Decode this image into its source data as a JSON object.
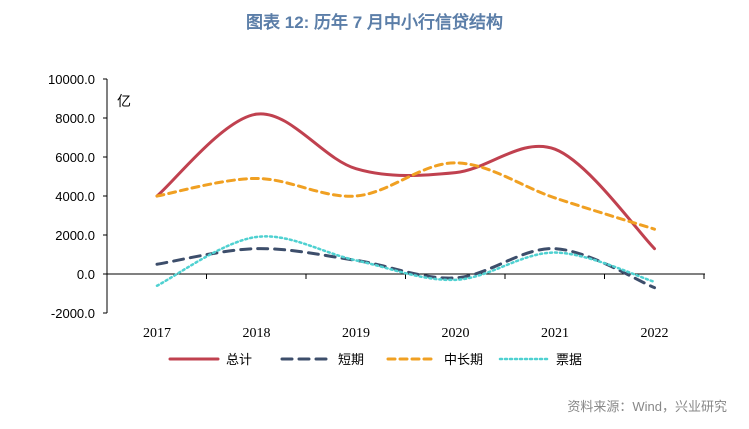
{
  "title": "图表 12: 历年 7 月中小行信贷结构",
  "source": "资料来源：Wind，兴业研究",
  "chart_data": {
    "type": "line",
    "smooth": true,
    "categories": [
      "2017",
      "2018",
      "2019",
      "2020",
      "2021",
      "2022"
    ],
    "ylim": [
      -2000,
      10000
    ],
    "yticks": [
      -2000,
      0,
      2000,
      4000,
      6000,
      8000,
      10000
    ],
    "ytick_labels": [
      "-2000.0",
      "0.0",
      "2000.0",
      "4000.0",
      "6000.0",
      "8000.0",
      "10000.0"
    ],
    "y_unit": "亿",
    "grid": false,
    "legend_position": "bottom",
    "series": [
      {
        "name": "总计",
        "values": [
          4000,
          8200,
          5400,
          5200,
          6400,
          1300
        ],
        "color": "#c0414f",
        "dash": "solid"
      },
      {
        "name": "短期",
        "values": [
          500,
          1300,
          700,
          -200,
          1300,
          -700
        ],
        "color": "#3d4e6b",
        "dash": "long"
      },
      {
        "name": "中长期",
        "values": [
          4000,
          4900,
          4000,
          5700,
          3900,
          2300
        ],
        "color": "#f0a022",
        "dash": "medium"
      },
      {
        "name": "票据",
        "values": [
          -600,
          1900,
          700,
          -300,
          1100,
          -400
        ],
        "color": "#4fd1d1",
        "dash": "dotted"
      }
    ]
  }
}
